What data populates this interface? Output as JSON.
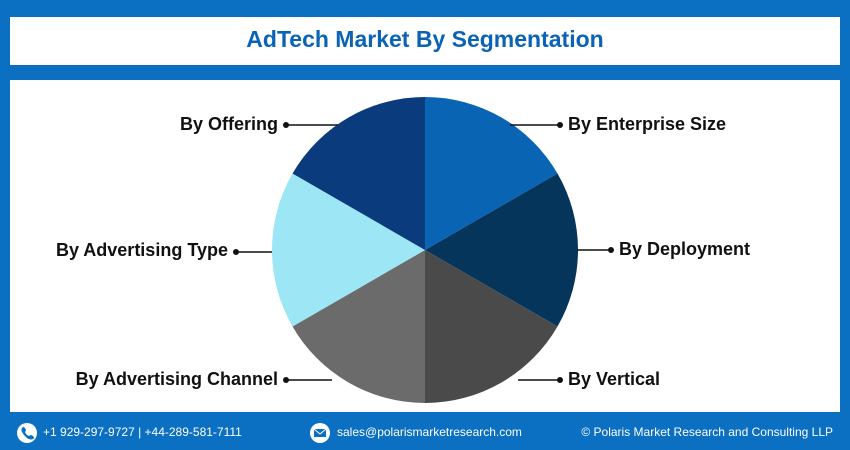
{
  "header": {
    "title": "AdTech Market By Segmentation"
  },
  "segments": [
    {
      "label": "By Enterprise Size"
    },
    {
      "label": "By Deployment"
    },
    {
      "label": "By Vertical"
    },
    {
      "label": "By Advertising Channel"
    },
    {
      "label": "By Advertising Type"
    },
    {
      "label": "By Offering"
    }
  ],
  "footer": {
    "phone": "+1 929-297-9727 | +44-289-581-7111",
    "email": "sales@polarismarketresearch.com",
    "copyright": "© Polaris Market Research and Consulting LLP"
  }
}
